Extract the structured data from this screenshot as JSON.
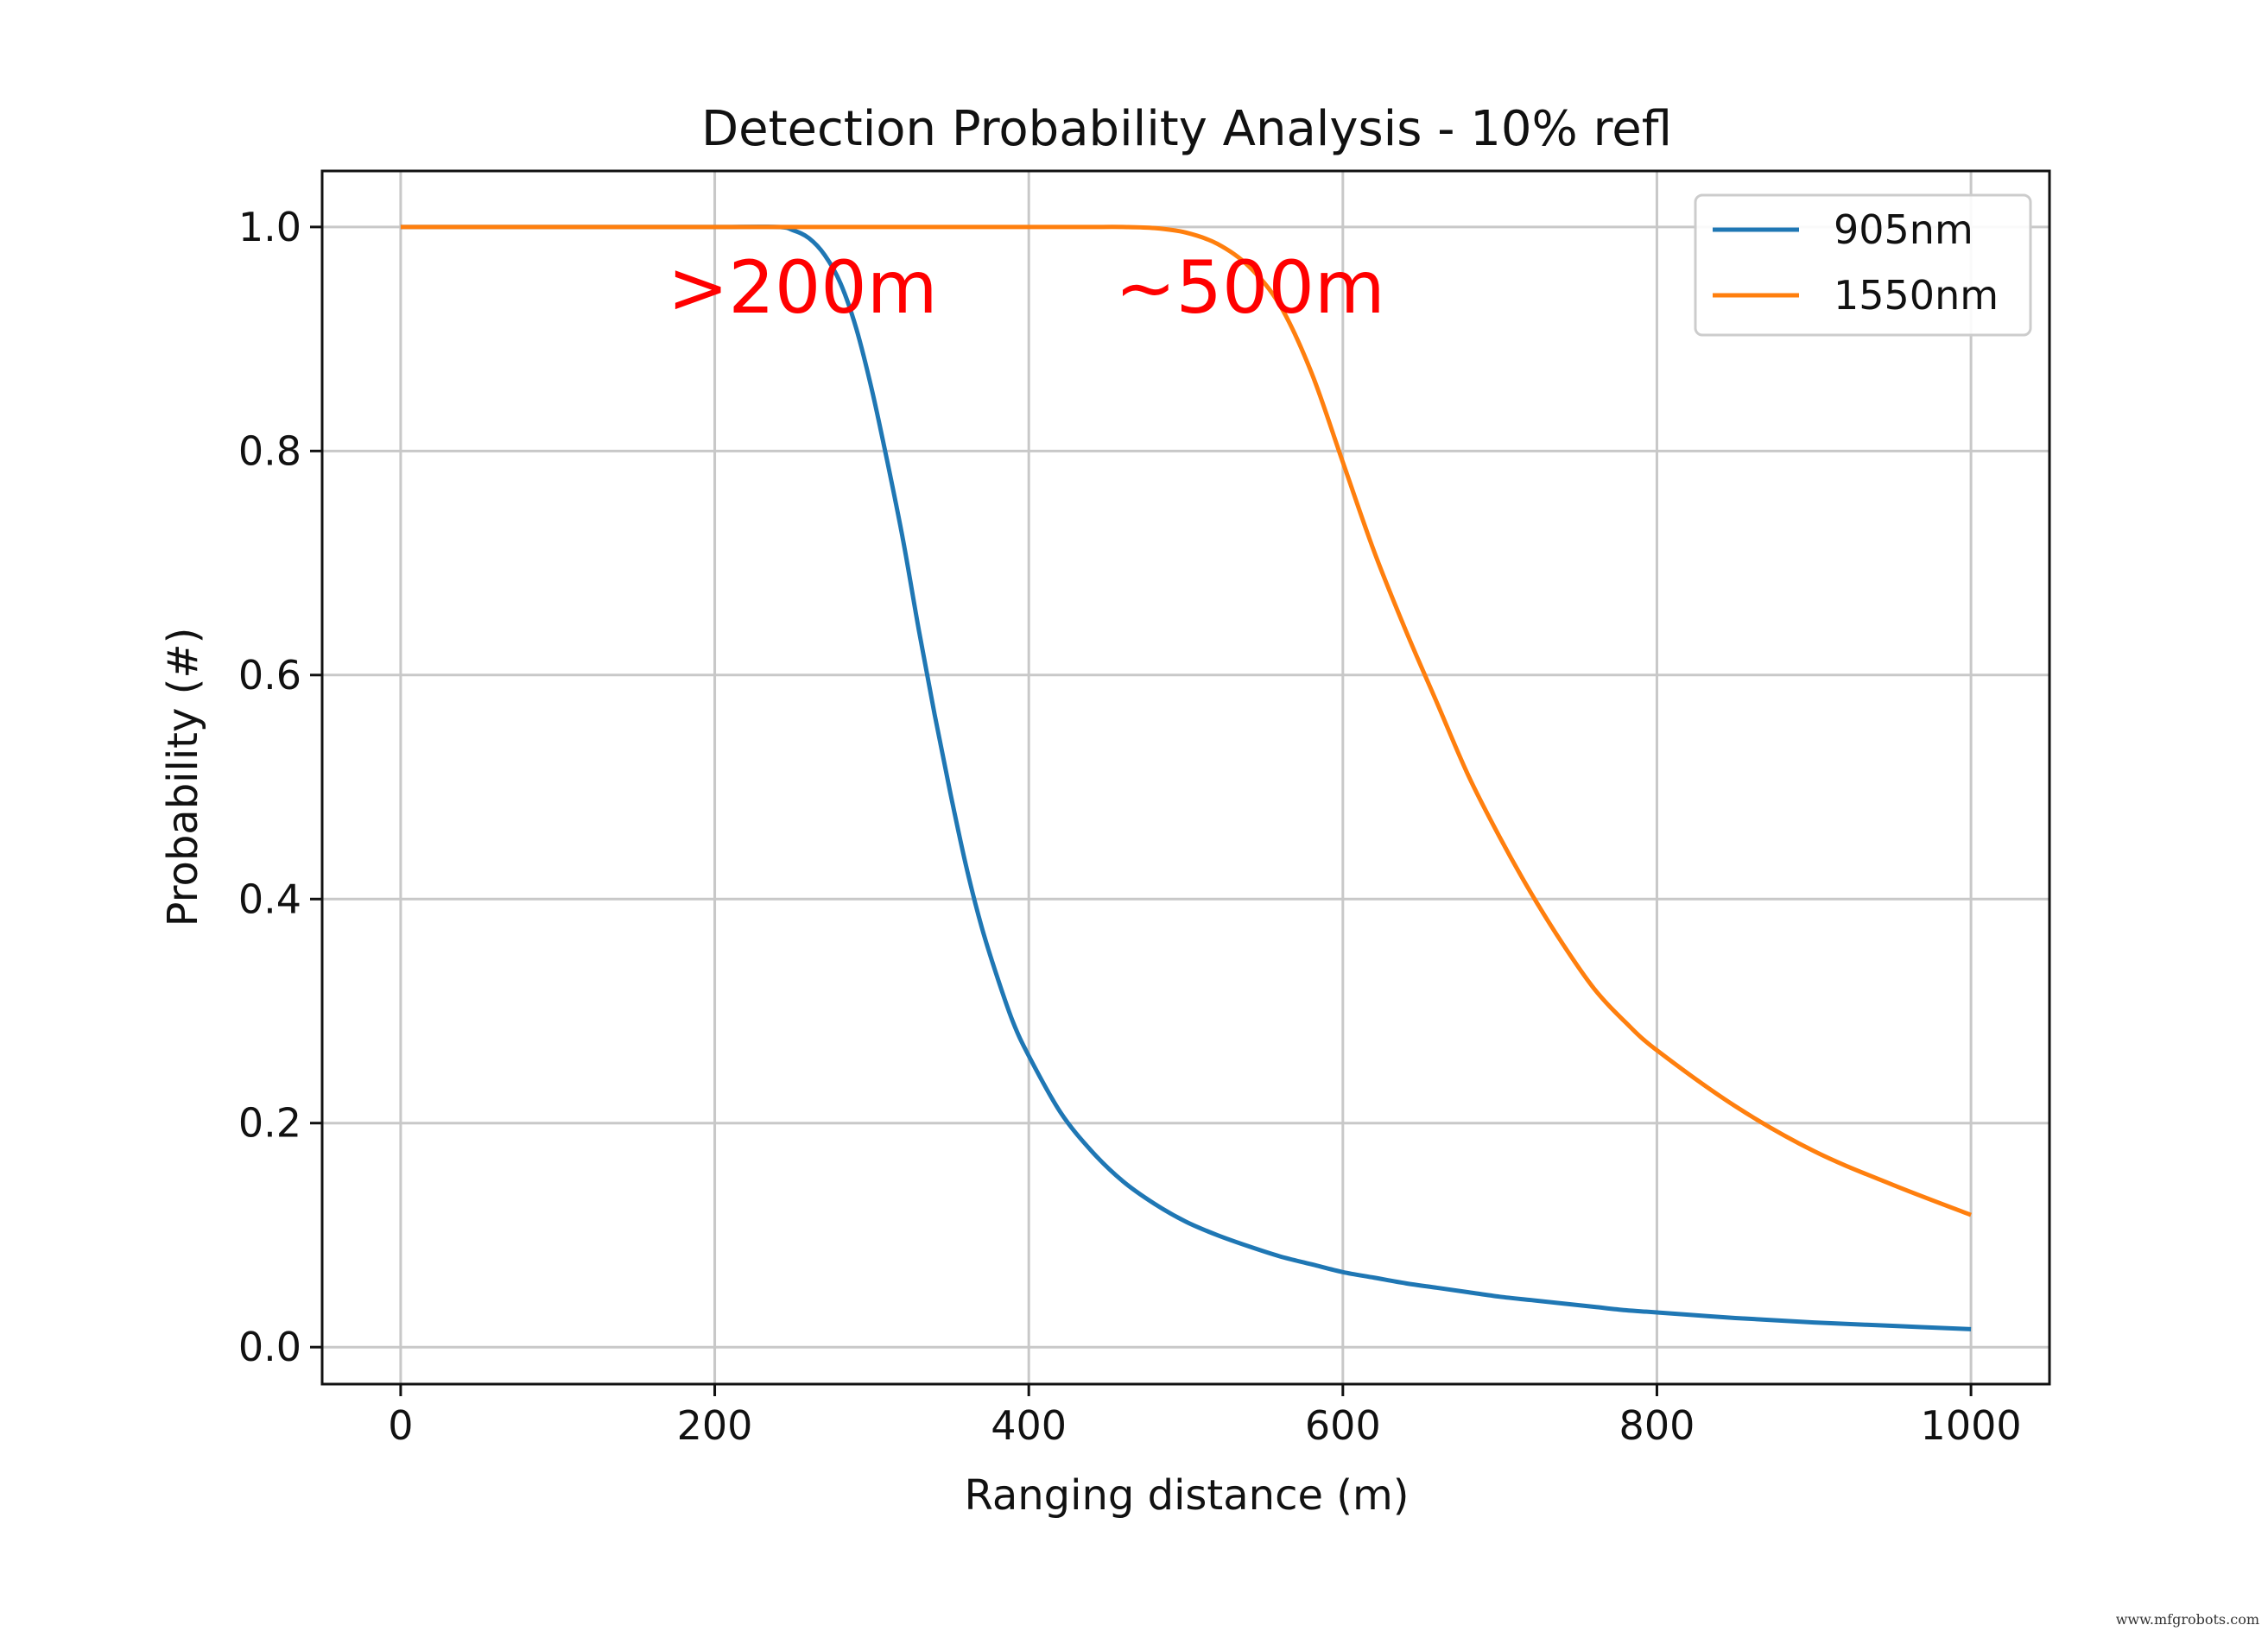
{
  "chart_data": {
    "type": "line",
    "title": "Detection Probability Analysis - 10% refl",
    "xlabel": "Ranging distance (m)",
    "ylabel": "Probability (#)",
    "xlim": [
      -50,
      1050
    ],
    "ylim": [
      -0.033,
      1.05
    ],
    "x_ticks": [
      0,
      200,
      400,
      600,
      800,
      1000
    ],
    "x_tick_labels": [
      "0",
      "200",
      "400",
      "600",
      "800",
      "1000"
    ],
    "y_ticks": [
      0.0,
      0.2,
      0.4,
      0.6,
      0.8,
      1.0
    ],
    "y_tick_labels": [
      "0.0",
      "0.2",
      "0.4",
      "0.6",
      "0.8",
      "1.0"
    ],
    "grid": true,
    "legend_position": "top-right",
    "x": [
      0,
      50,
      100,
      150,
      200,
      240,
      250,
      260,
      270,
      280,
      290,
      300,
      310,
      320,
      330,
      340,
      350,
      360,
      370,
      380,
      390,
      400,
      420,
      440,
      460,
      480,
      500,
      520,
      540,
      560,
      580,
      600,
      620,
      640,
      660,
      680,
      700,
      720,
      740,
      760,
      780,
      800,
      850,
      900,
      950,
      1000
    ],
    "series": [
      {
        "name": "905nm",
        "color": "#1f77b4",
        "values": [
          1.0,
          1.0,
          1.0,
          1.0,
          1.0,
          1.0,
          0.997,
          0.99,
          0.975,
          0.95,
          0.91,
          0.855,
          0.79,
          0.72,
          0.64,
          0.565,
          0.495,
          0.43,
          0.375,
          0.33,
          0.29,
          0.26,
          0.21,
          0.175,
          0.148,
          0.128,
          0.112,
          0.1,
          0.09,
          0.081,
          0.074,
          0.067,
          0.062,
          0.057,
          0.053,
          0.049,
          0.045,
          0.042,
          0.039,
          0.036,
          0.033,
          0.031,
          0.026,
          0.022,
          0.019,
          0.016
        ]
      },
      {
        "name": "1550nm",
        "color": "#ff7f0e",
        "values": [
          1.0,
          1.0,
          1.0,
          1.0,
          1.0,
          1.0,
          1.0,
          1.0,
          1.0,
          1.0,
          1.0,
          1.0,
          1.0,
          1.0,
          1.0,
          1.0,
          1.0,
          1.0,
          1.0,
          1.0,
          1.0,
          1.0,
          1.0,
          1.0,
          1.0,
          0.999,
          0.995,
          0.985,
          0.965,
          0.93,
          0.87,
          0.79,
          0.71,
          0.64,
          0.575,
          0.51,
          0.455,
          0.405,
          0.36,
          0.32,
          0.29,
          0.265,
          0.215,
          0.175,
          0.145,
          0.118
        ]
      }
    ],
    "annotations": [
      {
        "text": ">200m",
        "x": 170,
        "y": 0.945
      },
      {
        "text": "~500m",
        "x": 455,
        "y": 0.945
      }
    ]
  },
  "watermark": "www.mfgrobots.com"
}
